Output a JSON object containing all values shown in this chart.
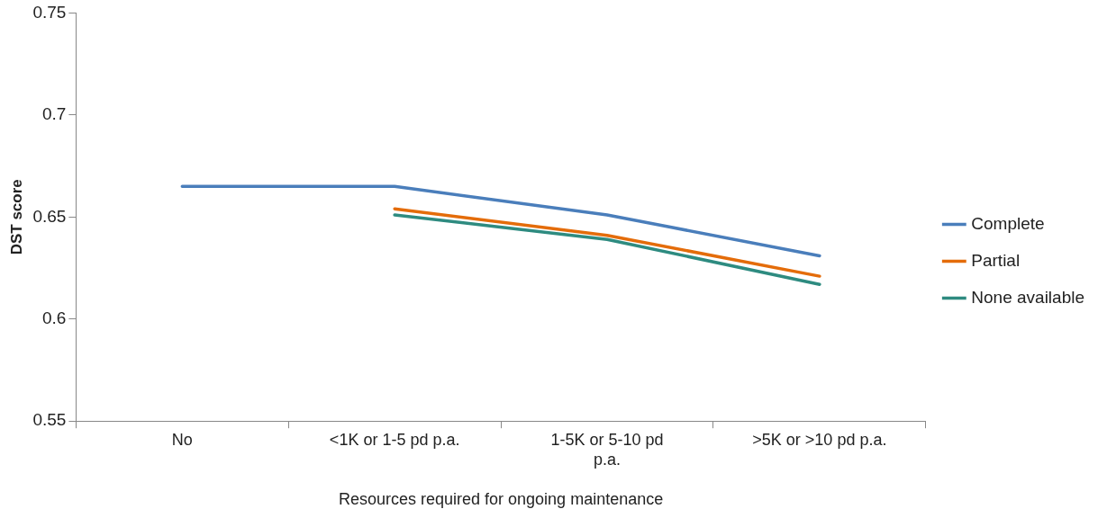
{
  "chart_data": {
    "type": "line",
    "xlabel": "Resources required for ongoing maintenance",
    "ylabel": "DST score",
    "categories": [
      "No",
      "<1K or 1-5 pd p.a.",
      "1-5K or 5-10 pd p.a.",
      ">5K or >10 pd p.a."
    ],
    "series": [
      {
        "name": "Complete",
        "color": "#4a7ebb",
        "values": [
          0.665,
          0.665,
          0.651,
          0.631
        ]
      },
      {
        "name": "Partial",
        "color": "#e46c0a",
        "values": [
          null,
          0.654,
          0.641,
          0.621
        ]
      },
      {
        "name": "None available",
        "color": "#2e8b80",
        "values": [
          null,
          0.651,
          0.639,
          0.617
        ]
      }
    ],
    "ylim": [
      0.55,
      0.75
    ],
    "yticks": [
      0.55,
      0.6,
      0.65,
      0.7,
      0.75
    ],
    "grid": false,
    "legend": "right",
    "marker": "none",
    "line_style": "solid"
  }
}
